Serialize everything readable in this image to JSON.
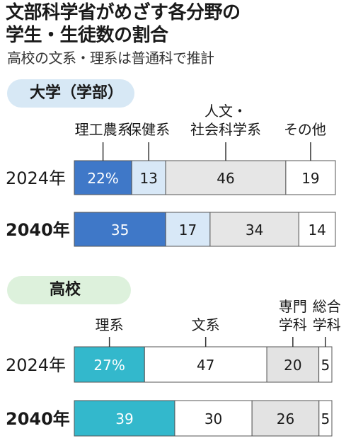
{
  "title_lines": [
    "文部科学省がめざす各分野の",
    "学生・生徒数の割合"
  ],
  "subtitle": "高校の文系・理系は普通科で推計",
  "colors": {
    "stem_dark": "#3f78c8",
    "health_light": "#d8e8f7",
    "humanities_gray": "#e6e6e6",
    "other_white": "#ffffff",
    "science_teal": "#33b8cc",
    "vocational_gray": "#e3e3e3"
  },
  "chart_data": [
    {
      "type": "bar",
      "stacked": true,
      "orientation": "horizontal",
      "title": "大学（学部）",
      "categories": [
        "2024年",
        "2040年"
      ],
      "series": [
        {
          "name": "理工農系",
          "values": [
            22,
            35
          ],
          "labels": [
            "22%",
            "35"
          ],
          "color": "#3f78c8",
          "text": "#ffffff"
        },
        {
          "name": "保健系",
          "values": [
            13,
            17
          ],
          "labels": [
            "13",
            "17"
          ],
          "color": "#d8e8f7",
          "text": "#1a1a1a"
        },
        {
          "name": "人文・社会科学系",
          "values": [
            46,
            34
          ],
          "labels": [
            "46",
            "34"
          ],
          "color": "#e6e6e6",
          "text": "#1a1a1a"
        },
        {
          "name": "その他",
          "values": [
            19,
            14
          ],
          "labels": [
            "19",
            "14"
          ],
          "color": "#ffffff",
          "text": "#1a1a1a"
        }
      ],
      "legend_lines": [
        [
          "理工農系"
        ],
        [
          "保健系"
        ],
        [
          "人文・",
          "社会科学系"
        ],
        [
          "その他"
        ]
      ]
    },
    {
      "type": "bar",
      "stacked": true,
      "orientation": "horizontal",
      "title": "高校",
      "categories": [
        "2024年",
        "2040年"
      ],
      "series": [
        {
          "name": "理系",
          "values": [
            27,
            39
          ],
          "labels": [
            "27%",
            "39"
          ],
          "color": "#33b8cc",
          "text": "#ffffff"
        },
        {
          "name": "文系",
          "values": [
            47,
            30
          ],
          "labels": [
            "47",
            "30"
          ],
          "color": "#ffffff",
          "text": "#1a1a1a"
        },
        {
          "name": "専門学科",
          "values": [
            20,
            26
          ],
          "labels": [
            "20",
            "26"
          ],
          "color": "#e3e3e3",
          "text": "#1a1a1a"
        },
        {
          "name": "総合学科",
          "values": [
            5,
            5
          ],
          "labels": [
            "5",
            "5"
          ],
          "color": "#ffffff",
          "text": "#1a1a1a"
        }
      ],
      "legend_lines": [
        [
          "理系"
        ],
        [
          "文系"
        ],
        [
          "専門",
          "学科"
        ],
        [
          "総合",
          "学科"
        ]
      ]
    }
  ]
}
